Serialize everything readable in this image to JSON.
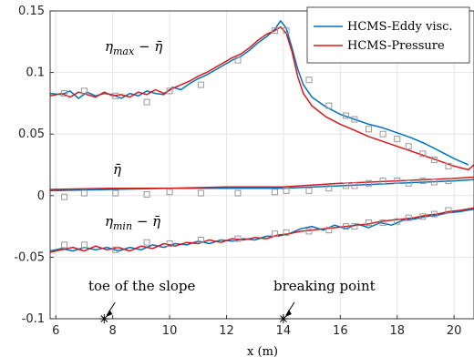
{
  "chart_data": {
    "type": "line",
    "title": "",
    "xlabel": "x (m)",
    "ylabel": "",
    "xlim": [
      5.8,
      20.7
    ],
    "ylim": [
      -0.1,
      0.15
    ],
    "xticks": [
      6,
      8,
      10,
      12,
      14,
      16,
      18,
      20
    ],
    "yticks": [
      -0.1,
      -0.05,
      0,
      0.05,
      0.1,
      0.15
    ],
    "xtick_labels": [
      "6",
      "8",
      "10",
      "12",
      "14",
      "16",
      "18",
      "20"
    ],
    "ytick_labels": [
      "-0.1",
      "-0.05",
      "0",
      "0.05",
      "0.1",
      "0.15"
    ],
    "grid": true,
    "legend_position": "top-right",
    "colors": {
      "eddy": "#0072BD",
      "pressure": "#D7191C",
      "markers": "#999999",
      "axis": "#262626",
      "grid": "#e6e6e6"
    },
    "labels": {
      "max_main": "η",
      "max_sub": "max",
      "max_minus": " − ",
      "max_bar": "η̄",
      "mean": "η̄",
      "min_main": "η",
      "min_sub": "min",
      "min_minus": " − ",
      "min_bar": "η̄"
    },
    "annotations": [
      {
        "text": "toe of the slope",
        "x": 7.7,
        "y": -0.1
      },
      {
        "text": "breaking point",
        "x": 14.0,
        "y": -0.1
      }
    ],
    "series": [
      {
        "name": "HCMS-Eddy visc.",
        "style": "line",
        "color": "#0072BD",
        "group": "max",
        "points": [
          [
            5.8,
            0.083
          ],
          [
            6.2,
            0.082
          ],
          [
            6.5,
            0.085
          ],
          [
            6.8,
            0.079
          ],
          [
            7.1,
            0.084
          ],
          [
            7.4,
            0.081
          ],
          [
            7.7,
            0.083
          ],
          [
            8.0,
            0.082
          ],
          [
            8.3,
            0.079
          ],
          [
            8.6,
            0.083
          ],
          [
            8.9,
            0.081
          ],
          [
            9.2,
            0.085
          ],
          [
            9.5,
            0.083
          ],
          [
            9.8,
            0.082
          ],
          [
            10.1,
            0.088
          ],
          [
            10.4,
            0.086
          ],
          [
            10.7,
            0.091
          ],
          [
            11.0,
            0.095
          ],
          [
            11.3,
            0.098
          ],
          [
            11.6,
            0.102
          ],
          [
            11.9,
            0.106
          ],
          [
            12.2,
            0.11
          ],
          [
            12.5,
            0.113
          ],
          [
            12.8,
            0.118
          ],
          [
            13.1,
            0.124
          ],
          [
            13.4,
            0.129
          ],
          [
            13.7,
            0.135
          ],
          [
            13.9,
            0.142
          ],
          [
            14.1,
            0.136
          ],
          [
            14.3,
            0.12
          ],
          [
            14.5,
            0.103
          ],
          [
            14.7,
            0.09
          ],
          [
            15.0,
            0.08
          ],
          [
            15.5,
            0.072
          ],
          [
            16.0,
            0.066
          ],
          [
            16.5,
            0.062
          ],
          [
            17.0,
            0.058
          ],
          [
            17.5,
            0.055
          ],
          [
            18.0,
            0.051
          ],
          [
            18.5,
            0.047
          ],
          [
            19.0,
            0.042
          ],
          [
            19.5,
            0.036
          ],
          [
            20.0,
            0.03
          ],
          [
            20.5,
            0.025
          ]
        ]
      },
      {
        "name": "HCMS-Pressure",
        "style": "line",
        "color": "#D7191C",
        "group": "max",
        "points": [
          [
            5.8,
            0.081
          ],
          [
            6.2,
            0.083
          ],
          [
            6.5,
            0.08
          ],
          [
            6.8,
            0.084
          ],
          [
            7.1,
            0.082
          ],
          [
            7.4,
            0.08
          ],
          [
            7.7,
            0.084
          ],
          [
            8.0,
            0.081
          ],
          [
            8.3,
            0.082
          ],
          [
            8.6,
            0.08
          ],
          [
            8.9,
            0.084
          ],
          [
            9.2,
            0.082
          ],
          [
            9.5,
            0.086
          ],
          [
            9.8,
            0.083
          ],
          [
            10.1,
            0.087
          ],
          [
            10.4,
            0.09
          ],
          [
            10.7,
            0.093
          ],
          [
            11.0,
            0.097
          ],
          [
            11.3,
            0.1
          ],
          [
            11.6,
            0.104
          ],
          [
            11.9,
            0.108
          ],
          [
            12.2,
            0.112
          ],
          [
            12.5,
            0.115
          ],
          [
            12.8,
            0.12
          ],
          [
            13.1,
            0.126
          ],
          [
            13.4,
            0.131
          ],
          [
            13.7,
            0.134
          ],
          [
            13.9,
            0.137
          ],
          [
            14.1,
            0.132
          ],
          [
            14.3,
            0.117
          ],
          [
            14.5,
            0.097
          ],
          [
            14.7,
            0.083
          ],
          [
            15.0,
            0.073
          ],
          [
            15.5,
            0.064
          ],
          [
            16.0,
            0.058
          ],
          [
            16.5,
            0.053
          ],
          [
            17.0,
            0.048
          ],
          [
            17.5,
            0.044
          ],
          [
            18.0,
            0.04
          ],
          [
            18.5,
            0.036
          ],
          [
            19.0,
            0.032
          ],
          [
            19.5,
            0.028
          ],
          [
            20.0,
            0.024
          ],
          [
            20.5,
            0.021
          ],
          [
            20.7,
            0.025
          ]
        ]
      },
      {
        "name": "",
        "style": "line",
        "color": "#0072BD",
        "group": "mean",
        "points": [
          [
            5.8,
            0.004
          ],
          [
            8,
            0.005
          ],
          [
            10,
            0.006
          ],
          [
            12,
            0.006
          ],
          [
            14,
            0.006
          ],
          [
            16,
            0.008
          ],
          [
            18,
            0.01
          ],
          [
            20,
            0.012
          ],
          [
            20.7,
            0.013
          ]
        ]
      },
      {
        "name": "",
        "style": "line",
        "color": "#D7191C",
        "group": "mean",
        "points": [
          [
            5.8,
            0.005
          ],
          [
            8,
            0.006
          ],
          [
            10,
            0.006
          ],
          [
            12,
            0.007
          ],
          [
            14,
            0.007
          ],
          [
            16,
            0.01
          ],
          [
            18,
            0.012
          ],
          [
            20,
            0.014
          ],
          [
            20.7,
            0.015
          ]
        ]
      },
      {
        "name": "",
        "style": "line",
        "color": "#0072BD",
        "group": "min",
        "points": [
          [
            5.8,
            -0.045
          ],
          [
            6.2,
            -0.043
          ],
          [
            6.6,
            -0.045
          ],
          [
            7.0,
            -0.042
          ],
          [
            7.4,
            -0.044
          ],
          [
            7.8,
            -0.042
          ],
          [
            8.2,
            -0.045
          ],
          [
            8.6,
            -0.042
          ],
          [
            9.0,
            -0.044
          ],
          [
            9.4,
            -0.04
          ],
          [
            9.8,
            -0.042
          ],
          [
            10.2,
            -0.039
          ],
          [
            10.6,
            -0.04
          ],
          [
            11.0,
            -0.037
          ],
          [
            11.4,
            -0.039
          ],
          [
            11.8,
            -0.036
          ],
          [
            12.2,
            -0.037
          ],
          [
            12.6,
            -0.035
          ],
          [
            13.0,
            -0.036
          ],
          [
            13.4,
            -0.033
          ],
          [
            13.8,
            -0.033
          ],
          [
            14.2,
            -0.031
          ],
          [
            14.6,
            -0.027
          ],
          [
            15.0,
            -0.025
          ],
          [
            15.4,
            -0.028
          ],
          [
            15.8,
            -0.024
          ],
          [
            16.2,
            -0.027
          ],
          [
            16.6,
            -0.023
          ],
          [
            17.0,
            -0.026
          ],
          [
            17.4,
            -0.022
          ],
          [
            17.8,
            -0.024
          ],
          [
            18.2,
            -0.02
          ],
          [
            18.6,
            -0.019
          ],
          [
            19.0,
            -0.017
          ],
          [
            19.4,
            -0.016
          ],
          [
            19.8,
            -0.014
          ],
          [
            20.2,
            -0.013
          ],
          [
            20.7,
            -0.011
          ]
        ]
      },
      {
        "name": "",
        "style": "line",
        "color": "#D7191C",
        "group": "min",
        "points": [
          [
            5.8,
            -0.046
          ],
          [
            6.2,
            -0.044
          ],
          [
            6.6,
            -0.042
          ],
          [
            7.0,
            -0.045
          ],
          [
            7.4,
            -0.041
          ],
          [
            7.8,
            -0.044
          ],
          [
            8.2,
            -0.042
          ],
          [
            8.6,
            -0.045
          ],
          [
            9.0,
            -0.041
          ],
          [
            9.4,
            -0.043
          ],
          [
            9.8,
            -0.039
          ],
          [
            10.2,
            -0.041
          ],
          [
            10.6,
            -0.038
          ],
          [
            11.0,
            -0.039
          ],
          [
            11.4,
            -0.036
          ],
          [
            11.8,
            -0.038
          ],
          [
            12.2,
            -0.035
          ],
          [
            12.6,
            -0.036
          ],
          [
            13.0,
            -0.034
          ],
          [
            13.4,
            -0.035
          ],
          [
            13.8,
            -0.032
          ],
          [
            14.2,
            -0.031
          ],
          [
            14.6,
            -0.029
          ],
          [
            15.0,
            -0.028
          ],
          [
            15.4,
            -0.027
          ],
          [
            15.8,
            -0.026
          ],
          [
            16.2,
            -0.025
          ],
          [
            16.6,
            -0.024
          ],
          [
            17.0,
            -0.023
          ],
          [
            17.4,
            -0.021
          ],
          [
            17.8,
            -0.02
          ],
          [
            18.2,
            -0.019
          ],
          [
            18.6,
            -0.018
          ],
          [
            19.0,
            -0.016
          ],
          [
            19.4,
            -0.015
          ],
          [
            19.8,
            -0.013
          ],
          [
            20.2,
            -0.012
          ],
          [
            20.7,
            -0.01
          ]
        ]
      },
      {
        "name": "",
        "style": "markers",
        "marker": "square",
        "color": "#999999",
        "group": "max",
        "points": [
          [
            6.3,
            0.083
          ],
          [
            7.0,
            0.085
          ],
          [
            8.1,
            0.081
          ],
          [
            9.2,
            0.076
          ],
          [
            10.0,
            0.085
          ],
          [
            11.1,
            0.09
          ],
          [
            12.4,
            0.11
          ],
          [
            13.7,
            0.134
          ],
          [
            14.1,
            0.134
          ],
          [
            14.9,
            0.094
          ],
          [
            15.6,
            0.073
          ],
          [
            16.2,
            0.065
          ],
          [
            16.5,
            0.062
          ],
          [
            17.0,
            0.054
          ],
          [
            17.5,
            0.05
          ],
          [
            18.0,
            0.046
          ],
          [
            18.4,
            0.04
          ],
          [
            18.9,
            0.034
          ],
          [
            19.3,
            0.029
          ],
          [
            19.8,
            0.024
          ]
        ]
      },
      {
        "name": "",
        "style": "markers",
        "marker": "square",
        "color": "#999999",
        "group": "mean",
        "points": [
          [
            6.3,
            -0.001
          ],
          [
            7.0,
            0.002
          ],
          [
            8.1,
            0.002
          ],
          [
            9.2,
            0.001
          ],
          [
            10.0,
            0.003
          ],
          [
            11.1,
            0.002
          ],
          [
            12.4,
            0.002
          ],
          [
            13.7,
            0.003
          ],
          [
            14.1,
            0.004
          ],
          [
            14.9,
            0.004
          ],
          [
            15.6,
            0.006
          ],
          [
            16.2,
            0.008
          ],
          [
            16.5,
            0.008
          ],
          [
            17.0,
            0.01
          ],
          [
            17.5,
            0.012
          ],
          [
            18.0,
            0.012
          ],
          [
            18.4,
            0.01
          ],
          [
            18.9,
            0.012
          ],
          [
            19.3,
            0.011
          ],
          [
            19.8,
            0.012
          ]
        ]
      },
      {
        "name": "",
        "style": "markers",
        "marker": "square",
        "color": "#999999",
        "group": "min",
        "points": [
          [
            6.3,
            -0.04
          ],
          [
            7.0,
            -0.04
          ],
          [
            8.1,
            -0.044
          ],
          [
            9.2,
            -0.038
          ],
          [
            10.0,
            -0.039
          ],
          [
            11.1,
            -0.036
          ],
          [
            12.4,
            -0.035
          ],
          [
            13.7,
            -0.031
          ],
          [
            14.1,
            -0.03
          ],
          [
            14.9,
            -0.029
          ],
          [
            15.6,
            -0.028
          ],
          [
            16.2,
            -0.025
          ],
          [
            16.5,
            -0.025
          ],
          [
            17.0,
            -0.022
          ],
          [
            17.5,
            -0.022
          ],
          [
            18.0,
            -0.021
          ],
          [
            18.4,
            -0.018
          ],
          [
            18.9,
            -0.017
          ],
          [
            19.3,
            -0.015
          ],
          [
            19.8,
            -0.012
          ]
        ]
      }
    ]
  }
}
